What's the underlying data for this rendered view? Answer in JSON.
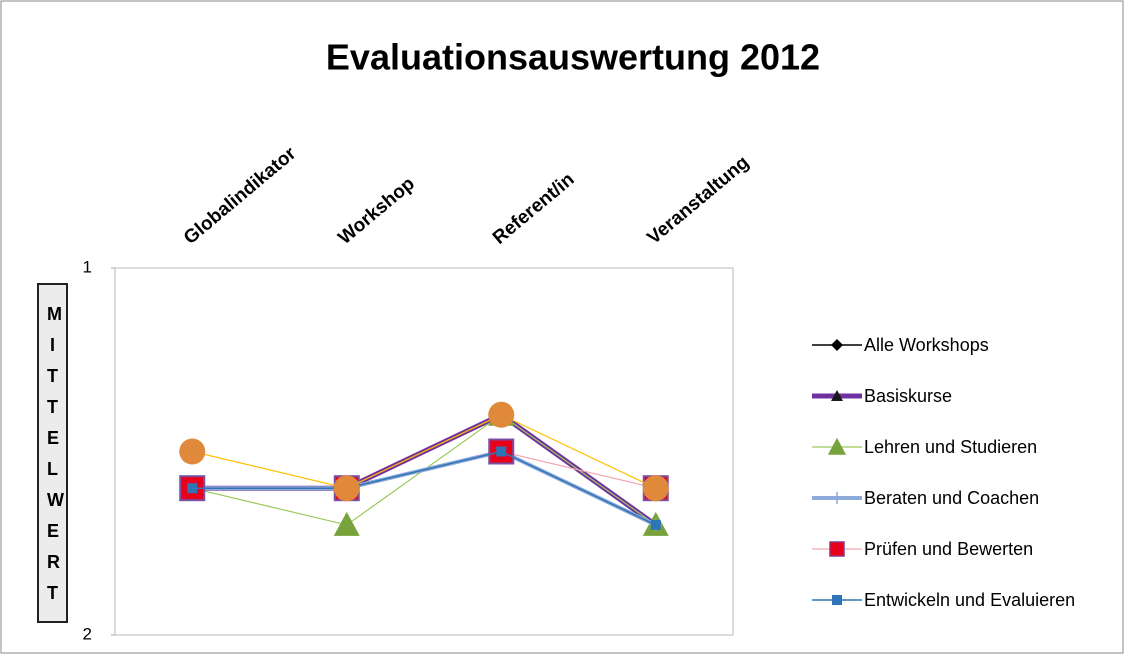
{
  "chart_data": {
    "type": "line",
    "title": "Evaluationsauswertung 2012",
    "y_label": "MITTELWERT",
    "categories": [
      "Globalindikator",
      "Workshop",
      "Referent/in",
      "Veranstaltung"
    ],
    "ylim": [
      1,
      2
    ],
    "yticks": [
      1,
      2
    ],
    "y_inverted": true,
    "legend": "right",
    "series": [
      {
        "name": "Alle Workshops",
        "color": "#000000",
        "line_color": "#000000",
        "line_width": 1.5,
        "marker": "diamond",
        "values": [
          1.6,
          1.6,
          1.4,
          1.7
        ]
      },
      {
        "name": "Basiskurse",
        "color": "#1a1a1a",
        "line_color": "#7030a0",
        "line_width": 5,
        "marker": "triangle-small",
        "values": [
          1.6,
          1.6,
          1.4,
          1.7
        ]
      },
      {
        "name": "Lehren und Studieren",
        "color": "#77a33a",
        "line_color": "#9bc95a",
        "line_width": 1.2,
        "marker": "triangle",
        "values": [
          1.6,
          1.7,
          1.4,
          1.7
        ]
      },
      {
        "name": "Beraten und Coachen",
        "color": "#8eaadb",
        "line_color": "#8eaadb",
        "line_width": 4,
        "marker": "plus",
        "values": [
          1.6,
          1.6,
          1.5,
          1.7
        ]
      },
      {
        "name": "Prüfen und Bewerten",
        "color": "#e8001c",
        "line_color": "#f4a6b0",
        "line_width": 1.2,
        "marker": "square",
        "values": [
          1.6,
          1.6,
          1.5,
          1.6
        ]
      },
      {
        "name": "Entwickeln und Evaluieren",
        "color": "#2e75b6",
        "line_color": "#2e75b6",
        "line_width": 1.5,
        "marker": "square-small",
        "values": [
          1.6,
          1.6,
          1.5,
          1.7
        ]
      },
      {
        "color": "#e0893a",
        "line_color": "#ffc000",
        "line_width": 1.2,
        "marker": "circle",
        "values": [
          1.5,
          1.6,
          1.4,
          1.6
        ]
      }
    ]
  }
}
